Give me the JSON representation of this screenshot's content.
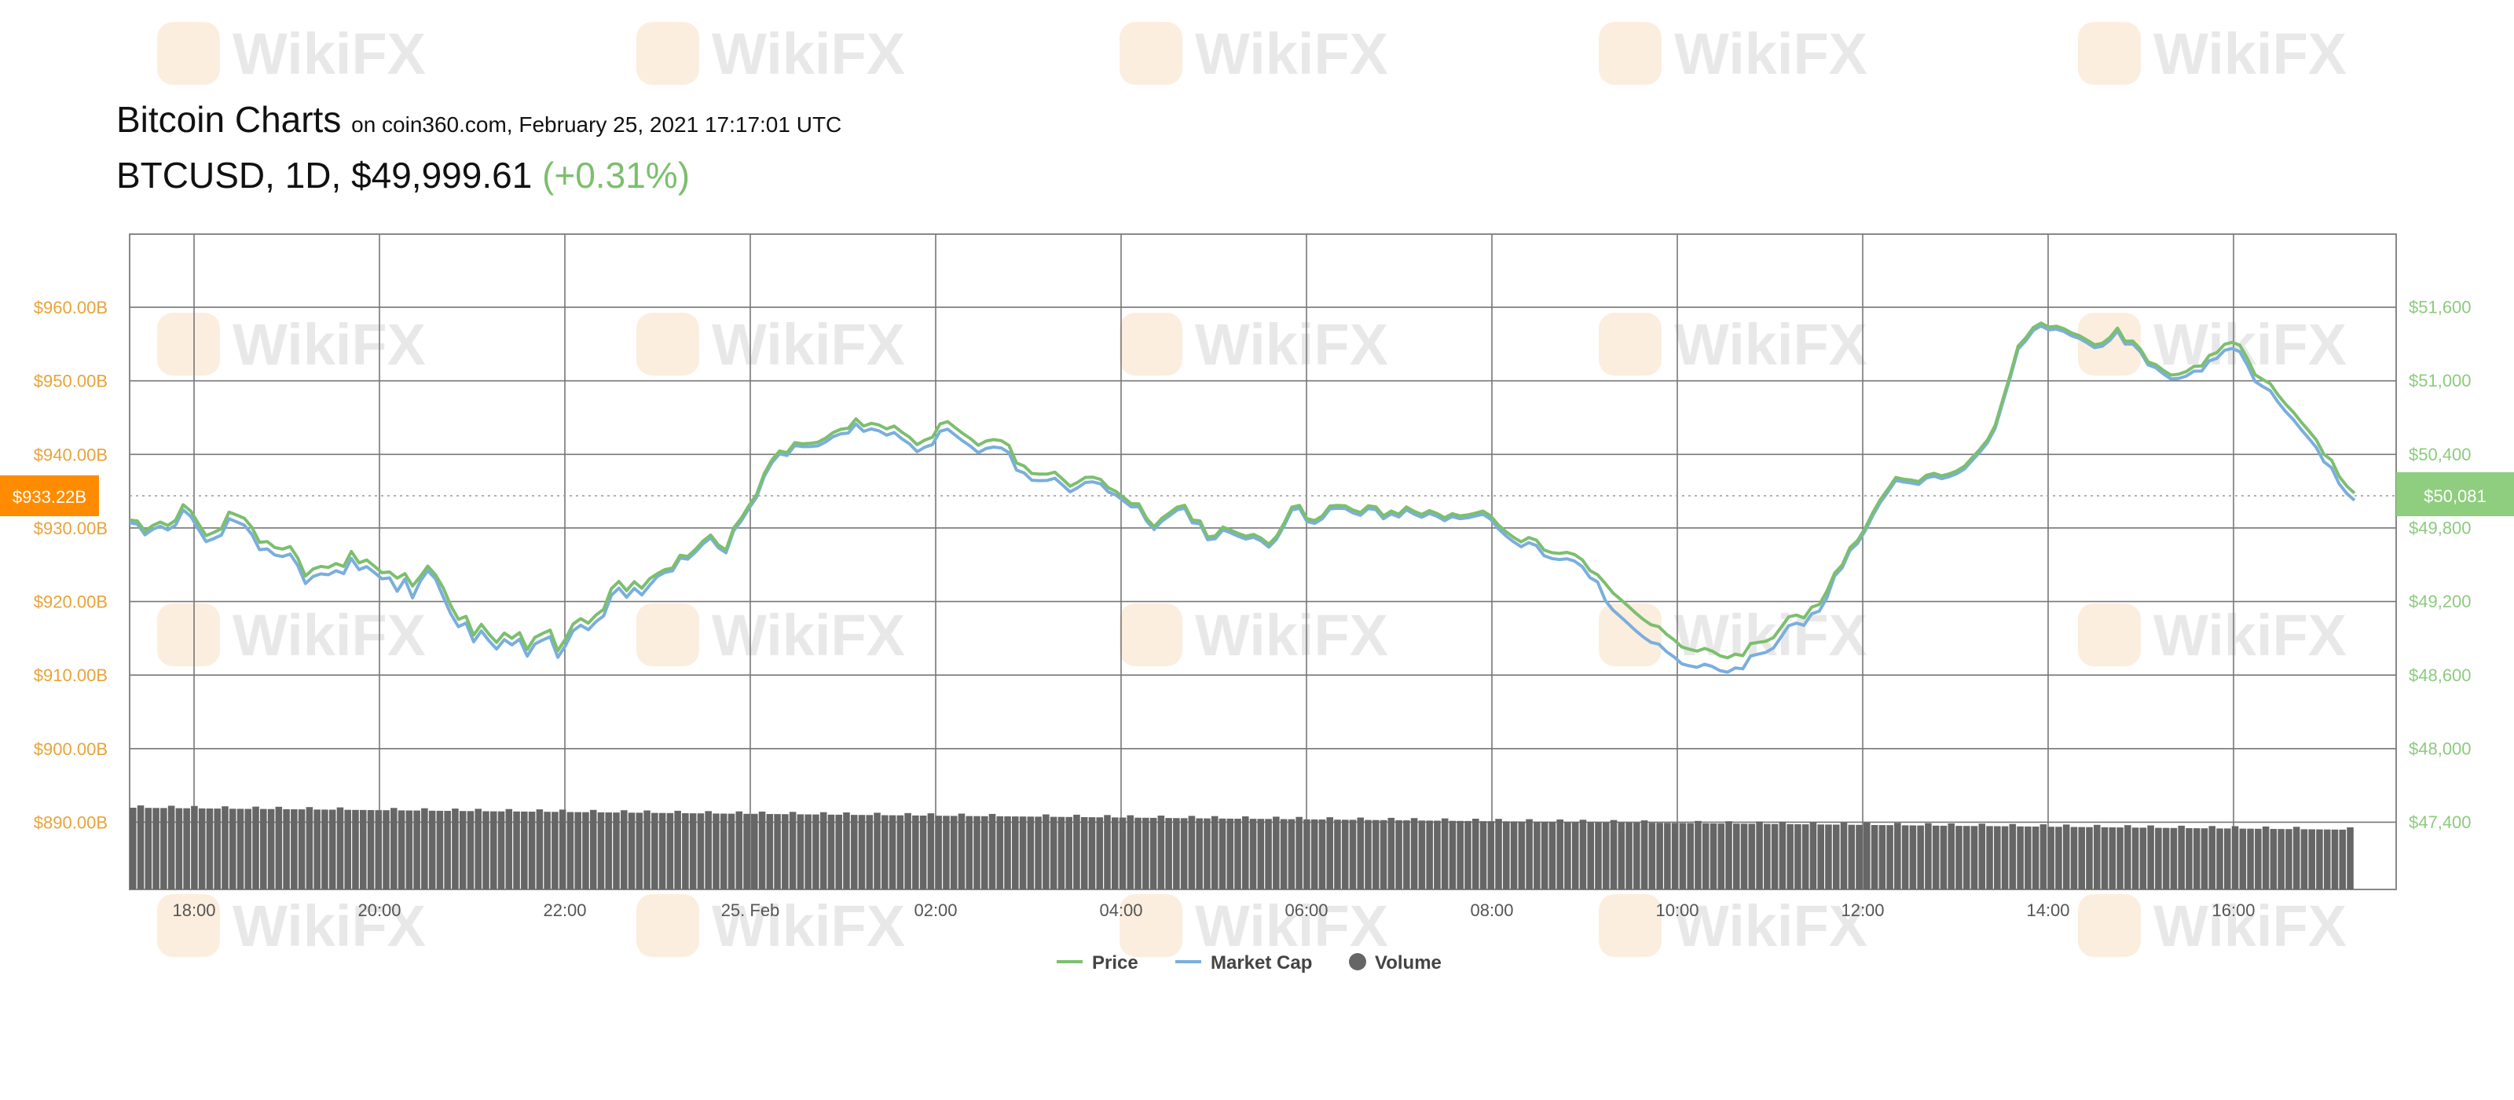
{
  "header": {
    "title": "Bitcoin Charts",
    "source": "on coin360.com, February 25, 2021 17:17:01 UTC",
    "pair": "BTCUSD",
    "interval": "1D",
    "price": "$49,999.61",
    "change": "(+0.31%)"
  },
  "watermark": "WikiFX",
  "colors": {
    "price": "#7cbf6e",
    "market_cap": "#7aaedd",
    "volume": "#666666",
    "left_axis": "#e8a33a",
    "right_axis": "#8ccb7e",
    "left_badge": "#ff8c00"
  },
  "badges": {
    "left": "$933.22B",
    "right": "$50,081"
  },
  "chart_data": {
    "type": "line",
    "x_ticks": [
      "18:00",
      "20:00",
      "22:00",
      "25. Feb",
      "02:00",
      "04:00",
      "06:00",
      "08:00",
      "10:00",
      "12:00",
      "14:00",
      "16:00"
    ],
    "left_axis": {
      "label": "",
      "ticks": [
        "$890.00B",
        "$900.00B",
        "$910.00B",
        "$920.00B",
        "$930.00B",
        "$940.00B",
        "$950.00B",
        "$960.00B"
      ],
      "range_B": [
        880.86,
        969.94
      ]
    },
    "right_axis": {
      "label": "",
      "ticks": [
        "$47,400",
        "$48,000",
        "$48,600",
        "$49,200",
        "$49,800",
        "$50,400",
        "$51,000",
        "$51,600"
      ],
      "range": [
        46850,
        52192
      ]
    },
    "legend": [
      "Price",
      "Market Cap",
      "Volume"
    ],
    "legend_position": "bottom",
    "grid": true,
    "series": [
      {
        "name": "Price",
        "axis": "right",
        "values": [
          49862,
          49854,
          49770,
          49816,
          49845,
          49817,
          49859,
          49986,
          49934,
          49832,
          49734,
          49760,
          49791,
          49926,
          49902,
          49876,
          49801,
          49679,
          49686,
          49637,
          49625,
          49645,
          49551,
          49405,
          49462,
          49483,
          49475,
          49507,
          49483,
          49605,
          49512,
          49536,
          49486,
          49432,
          49438,
          49388,
          49424,
          49324,
          49400,
          49486,
          49416,
          49310,
          49165,
          49052,
          49076,
          48923,
          49011,
          48931,
          48864,
          48940,
          48898,
          48943,
          48806,
          48904,
          48936,
          48964,
          48796,
          48891,
          49013,
          49057,
          49021,
          49087,
          49134,
          49301,
          49360,
          49286,
          49358,
          49305,
          49382,
          49423,
          49457,
          49470,
          49574,
          49565,
          49622,
          49690,
          49739,
          49658,
          49618,
          49796,
          49878,
          49979,
          50070,
          50241,
          50351,
          50424,
          50411,
          50493,
          50483,
          50486,
          50495,
          50528,
          50574,
          50601,
          50610,
          50686,
          50628,
          50650,
          50637,
          50604,
          50627,
          50578,
          50537,
          50476,
          50513,
          50536,
          50645,
          50663,
          50614,
          50566,
          50524,
          50471,
          50505,
          50517,
          50509,
          50470,
          50327,
          50302,
          50241,
          50236,
          50236,
          50252,
          50197,
          50137,
          50169,
          50209,
          50211,
          50192,
          50125,
          50095,
          50046,
          49995,
          49993,
          49876,
          49807,
          49875,
          49919,
          49966,
          49981,
          49862,
          49854,
          49724,
          49732,
          49804,
          49780,
          49752,
          49729,
          49744,
          49714,
          49664,
          49728,
          49837,
          49966,
          49981,
          49872,
          49857,
          49895,
          49976,
          49980,
          49978,
          49943,
          49923,
          49978,
          49969,
          49895,
          49935,
          49909,
          49968,
          49933,
          49907,
          49938,
          49915,
          49880,
          49913,
          49895,
          49903,
          49917,
          49935,
          49896,
          49823,
          49767,
          49721,
          49683,
          49719,
          49697,
          49617,
          49596,
          49589,
          49598,
          49580,
          49537,
          49449,
          49415,
          49344,
          49268,
          49215,
          49159,
          49102,
          49050,
          49007,
          48992,
          48931,
          48885,
          48827,
          48808,
          48793,
          48815,
          48793,
          48755,
          48738,
          48768,
          48756,
          48854,
          48864,
          48873,
          48903,
          48987,
          49072,
          49087,
          49063,
          49151,
          49173,
          49283,
          49428,
          49496,
          49636,
          49694,
          49797,
          49922,
          50030,
          50116,
          50208,
          50195,
          50187,
          50175,
          50226,
          50242,
          50222,
          50238,
          50263,
          50301,
          50371,
          50438,
          50516,
          50633,
          50844,
          51053,
          51279,
          51346,
          51432,
          51467,
          51434,
          51441,
          51421,
          51386,
          51365,
          51329,
          51290,
          51301,
          51349,
          51426,
          51319,
          51320,
          51255,
          51150,
          51129,
          51082,
          51043,
          51050,
          51072,
          51114,
          51117,
          51203,
          51226,
          51294,
          51310,
          51286,
          51176,
          51046,
          51007,
          50972,
          50881,
          50805,
          50741,
          50662,
          50590,
          50515,
          50397,
          50349,
          50217,
          50137,
          50081
        ],
        "note": "values only; detailed curve rendered from source trace"
      },
      {
        "name": "Market Cap",
        "axis": "left",
        "note": "tracks Price series closely"
      },
      {
        "name": "Volume",
        "note": "bars, gently declining across the period"
      }
    ]
  }
}
